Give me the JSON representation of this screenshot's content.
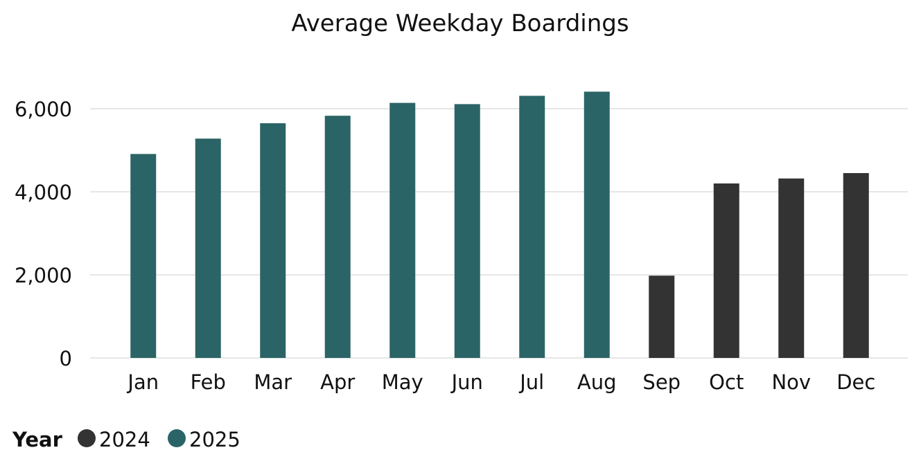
{
  "chart_data": {
    "type": "bar",
    "title": "Average Weekday Boardings",
    "xlabel": "",
    "ylabel": "",
    "categories": [
      "Jan",
      "Feb",
      "Mar",
      "Apr",
      "May",
      "Jun",
      "Jul",
      "Aug",
      "Sep",
      "Oct",
      "Nov",
      "Dec"
    ],
    "series": [
      {
        "name": "2024",
        "color": "#333333",
        "values": [
          null,
          null,
          null,
          null,
          null,
          null,
          null,
          null,
          1980,
          4200,
          4320,
          4450
        ]
      },
      {
        "name": "2025",
        "color": "#2b6466",
        "values": [
          4910,
          5280,
          5650,
          5830,
          6140,
          6110,
          6310,
          6410,
          null,
          null,
          null,
          null
        ]
      }
    ],
    "ylim": [
      0,
      7000
    ],
    "yticks": [
      0,
      2000,
      4000,
      6000
    ],
    "ytick_labels": [
      "0",
      "2,000",
      "4,000",
      "6,000"
    ],
    "grid": true,
    "legend": {
      "title": "Year",
      "placement": "bottom-left",
      "entries": [
        "2024",
        "2025"
      ]
    }
  }
}
